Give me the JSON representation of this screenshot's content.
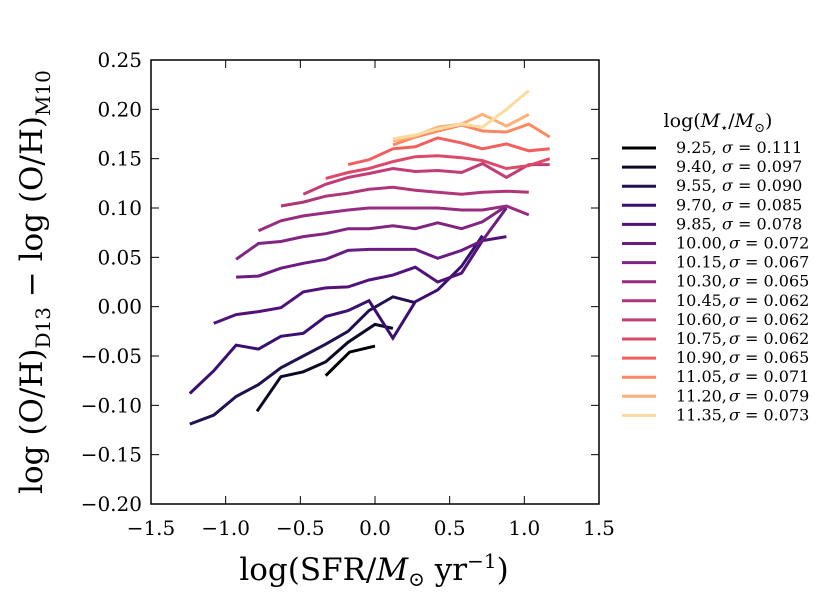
{
  "chart_data": {
    "type": "line",
    "xlabel": "log(SFR/M⊙ yr⁻¹)",
    "ylabel": "log (O/H)D13 − log (O/H)M10",
    "xlim": [
      -1.5,
      1.5
    ],
    "ylim": [
      -0.2,
      0.25
    ],
    "x_ticks": [
      -1.5,
      -1.0,
      -0.5,
      0.0,
      0.5,
      1.0,
      1.5
    ],
    "x_tick_labels": [
      "−1.5",
      "−1.0",
      "−0.5",
      "0.0",
      "0.5",
      "1.0",
      "1.5"
    ],
    "y_ticks": [
      -0.2,
      -0.15,
      -0.1,
      -0.05,
      0.0,
      0.05,
      0.1,
      0.15,
      0.2,
      0.25
    ],
    "y_tick_labels": [
      "−0.20",
      "−0.15",
      "−0.10",
      "−0.05",
      "0.00",
      "0.05",
      "0.10",
      "0.15",
      "0.20",
      "0.25"
    ],
    "grid": false,
    "legend": {
      "title": "log(M⋆/M⊙)",
      "position": "right-outside"
    },
    "series": [
      {
        "name": "9.25,  σ = 0.111",
        "mass": "9.25",
        "sigma": "0.111",
        "color": "#000004",
        "x": [
          -0.33,
          -0.17,
          0.0
        ],
        "y": [
          -0.07,
          -0.046,
          -0.04
        ]
      },
      {
        "name": "9.40,  σ = 0.097",
        "mass": "9.40",
        "sigma": "0.097",
        "color": "#0c0926",
        "x": [
          -0.79,
          -0.63,
          -0.48,
          -0.33,
          -0.18,
          0.0,
          0.12
        ],
        "y": [
          -0.106,
          -0.071,
          -0.066,
          -0.056,
          -0.036,
          -0.018,
          -0.022
        ]
      },
      {
        "name": "9.55,  σ = 0.090",
        "mass": "9.55",
        "sigma": "0.090",
        "color": "#221150",
        "x": [
          -1.24,
          -1.08,
          -0.93,
          -0.78,
          -0.63,
          -0.48,
          -0.33,
          -0.18,
          -0.04,
          0.12,
          0.27
        ],
        "y": [
          -0.119,
          -0.11,
          -0.091,
          -0.079,
          -0.062,
          -0.05,
          -0.038,
          -0.025,
          -0.004,
          0.01,
          0.004
        ]
      },
      {
        "name": "9.70,  σ = 0.085",
        "mass": "9.70",
        "sigma": "0.085",
        "color": "#3b0f70",
        "x": [
          -1.24,
          -1.08,
          -0.93,
          -0.78,
          -0.63,
          -0.48,
          -0.33,
          -0.18,
          -0.04,
          0.12,
          0.27,
          0.42,
          0.58,
          0.72
        ],
        "y": [
          -0.088,
          -0.065,
          -0.039,
          -0.043,
          -0.03,
          -0.027,
          -0.01,
          -0.004,
          0.006,
          -0.032,
          0.005,
          0.017,
          0.041,
          0.072
        ]
      },
      {
        "name": "9.85,  σ = 0.078",
        "mass": "9.85",
        "sigma": "0.078",
        "color": "#52127c",
        "x": [
          -1.08,
          -0.93,
          -0.78,
          -0.63,
          -0.48,
          -0.33,
          -0.18,
          -0.04,
          0.12,
          0.27,
          0.42,
          0.58,
          0.72,
          0.88
        ],
        "y": [
          -0.017,
          -0.008,
          -0.005,
          -0.001,
          0.015,
          0.019,
          0.02,
          0.027,
          0.032,
          0.04,
          0.025,
          0.034,
          0.067,
          0.071
        ]
      },
      {
        "name": "10.00, σ = 0.072",
        "mass": "10.00",
        "sigma": "0.072",
        "color": "#6a1c81",
        "x": [
          -0.93,
          -0.78,
          -0.63,
          -0.48,
          -0.33,
          -0.18,
          -0.04,
          0.12,
          0.27,
          0.42,
          0.58,
          0.72,
          0.88
        ],
        "y": [
          0.03,
          0.031,
          0.039,
          0.044,
          0.048,
          0.057,
          0.058,
          0.058,
          0.058,
          0.049,
          0.057,
          0.067,
          0.1
        ]
      },
      {
        "name": "10.15, σ = 0.067",
        "mass": "10.15",
        "sigma": "0.067",
        "color": "#812581",
        "x": [
          -0.93,
          -0.78,
          -0.63,
          -0.48,
          -0.33,
          -0.18,
          -0.04,
          0.12,
          0.27,
          0.42,
          0.58,
          0.72,
          0.88
        ],
        "y": [
          0.048,
          0.064,
          0.066,
          0.071,
          0.074,
          0.079,
          0.079,
          0.082,
          0.079,
          0.085,
          0.079,
          0.086,
          0.102
        ]
      },
      {
        "name": "10.30, σ = 0.065",
        "mass": "10.30",
        "sigma": "0.065",
        "color": "#982d80",
        "x": [
          -0.78,
          -0.63,
          -0.48,
          -0.33,
          -0.18,
          -0.04,
          0.12,
          0.27,
          0.42,
          0.58,
          0.72,
          0.88,
          1.03
        ],
        "y": [
          0.077,
          0.087,
          0.092,
          0.095,
          0.098,
          0.1,
          0.1,
          0.1,
          0.1,
          0.098,
          0.098,
          0.102,
          0.093
        ]
      },
      {
        "name": "10.45, σ = 0.062",
        "mass": "10.45",
        "sigma": "0.062",
        "color": "#b03578",
        "x": [
          -0.63,
          -0.48,
          -0.33,
          -0.18,
          -0.04,
          0.12,
          0.27,
          0.42,
          0.58,
          0.72,
          0.88,
          1.03
        ],
        "y": [
          0.102,
          0.106,
          0.112,
          0.115,
          0.119,
          0.121,
          0.118,
          0.116,
          0.114,
          0.116,
          0.117,
          0.116
        ]
      },
      {
        "name": "10.60, σ = 0.062",
        "mass": "10.60",
        "sigma": "0.062",
        "color": "#c43c75",
        "x": [
          -0.48,
          -0.33,
          -0.18,
          -0.04,
          0.12,
          0.27,
          0.42,
          0.58,
          0.72,
          0.88,
          1.03,
          1.17
        ],
        "y": [
          0.114,
          0.124,
          0.131,
          0.135,
          0.14,
          0.137,
          0.138,
          0.136,
          0.145,
          0.131,
          0.144,
          0.144
        ]
      },
      {
        "name": "10.75, σ = 0.062",
        "mass": "10.75",
        "sigma": "0.062",
        "color": "#dd4968",
        "x": [
          -0.33,
          -0.18,
          -0.04,
          0.12,
          0.27,
          0.42,
          0.58,
          0.72,
          0.88,
          1.03,
          1.17
        ],
        "y": [
          0.13,
          0.136,
          0.14,
          0.147,
          0.152,
          0.153,
          0.151,
          0.148,
          0.14,
          0.143,
          0.15
        ]
      },
      {
        "name": "10.90, σ = 0.065",
        "mass": "10.90",
        "sigma": "0.065",
        "color": "#f1605d",
        "x": [
          -0.18,
          -0.04,
          0.12,
          0.27,
          0.42,
          0.58,
          0.72,
          0.88,
          1.03,
          1.17
        ],
        "y": [
          0.144,
          0.149,
          0.16,
          0.162,
          0.171,
          0.166,
          0.16,
          0.165,
          0.158,
          0.16
        ]
      },
      {
        "name": "11.05, σ = 0.071",
        "mass": "11.05",
        "sigma": "0.071",
        "color": "#fc8961",
        "x": [
          0.12,
          0.27,
          0.42,
          0.58,
          0.72,
          0.88,
          1.03,
          1.17
        ],
        "y": [
          0.164,
          0.172,
          0.178,
          0.184,
          0.178,
          0.177,
          0.185,
          0.172
        ]
      },
      {
        "name": "11.20, σ = 0.079",
        "mass": "11.20",
        "sigma": "0.079",
        "color": "#feb078",
        "x": [
          0.12,
          0.27,
          0.42,
          0.58,
          0.72,
          0.88,
          1.03
        ],
        "y": [
          0.168,
          0.173,
          0.182,
          0.185,
          0.195,
          0.183,
          0.195
        ]
      },
      {
        "name": "11.35, σ = 0.073",
        "mass": "11.35",
        "sigma": "0.073",
        "color": "#fcdba0",
        "x": [
          0.12,
          0.27,
          0.42,
          0.58,
          0.72,
          0.88,
          1.03
        ],
        "y": [
          0.17,
          0.174,
          0.18,
          0.185,
          0.182,
          0.2,
          0.219
        ]
      }
    ]
  }
}
